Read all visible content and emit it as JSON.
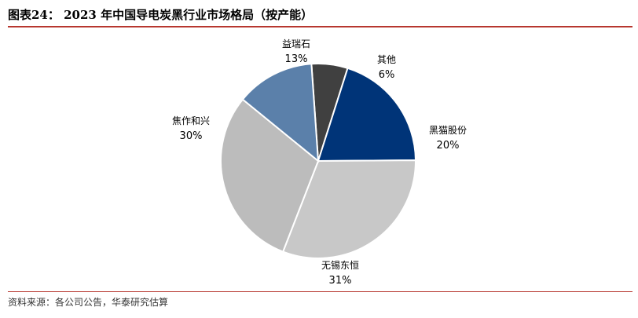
{
  "figure": {
    "title": "图表24：  2023 年中国导电炭黑行业市场格局（按产能）",
    "source": "资料来源：各公司公告，华泰研究估算"
  },
  "chart_data": {
    "type": "pie",
    "title": "2023 年中国导电炭黑行业市场格局（按产能）",
    "value_unit": "%",
    "start_angle_deg": 356,
    "direction": "clockwise",
    "slices": [
      {
        "label": "其他",
        "value": 6,
        "display": "6%",
        "color": "#404040"
      },
      {
        "label": "黑猫股份",
        "value": 20,
        "display": "20%",
        "color": "#003478"
      },
      {
        "label": "无锡东恒",
        "value": 31,
        "display": "31%",
        "color": "#c8c8c8"
      },
      {
        "label": "焦作和兴",
        "value": 30,
        "display": "30%",
        "color": "#bcbcbc"
      },
      {
        "label": "益瑞石",
        "value": 13,
        "display": "13%",
        "color": "#5b80aa"
      }
    ]
  }
}
